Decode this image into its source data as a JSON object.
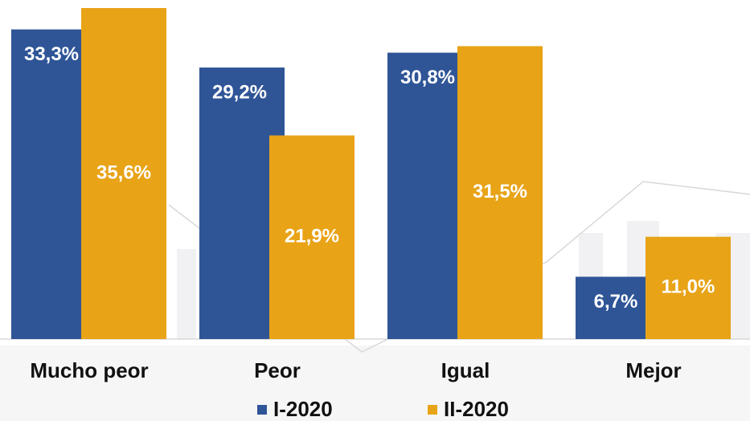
{
  "chart_data": {
    "type": "bar",
    "categories": [
      "Mucho peor",
      "Peor",
      "Igual",
      "Mejor"
    ],
    "series": [
      {
        "name": "I-2020",
        "color": "#2f5597",
        "values": [
          33.3,
          29.2,
          30.8,
          6.7
        ],
        "value_labels": [
          "33,3%",
          "29,2%",
          "30,8%",
          "6,7%"
        ]
      },
      {
        "name": "II-2020",
        "color": "#e8a317",
        "values": [
          35.6,
          21.9,
          31.5,
          11.0
        ],
        "value_labels": [
          "35,6%",
          "21,9%",
          "31,5%",
          "11,0%"
        ]
      }
    ],
    "legend": "bottom"
  }
}
